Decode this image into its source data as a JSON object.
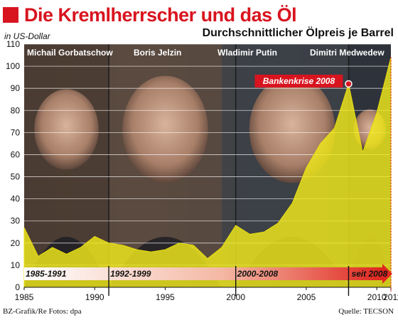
{
  "header": {
    "title": "Die Kremlherrscher und das Öl",
    "unit": "in US-Dollar",
    "subtitle": "Durchschnittlicher Ölpreis je Barrel"
  },
  "footer": {
    "left": "BZ-Grafik/Re Fotos: dpa",
    "right": "Quelle: TECSON"
  },
  "colors": {
    "accent_red": "#d8141f",
    "fill_yellow": "#f2ea1c",
    "era_bar_start": "#ffffff",
    "era_bar_end": "#e0271f"
  },
  "chart_data": {
    "type": "area",
    "title": "Die Kremlherrscher und das Öl",
    "subtitle": "Durchschnittlicher Ölpreis je Barrel",
    "ylabel": "in US-Dollar",
    "xlim": [
      1985,
      2011
    ],
    "ylim": [
      0,
      110
    ],
    "yticks": [
      0,
      10,
      20,
      30,
      40,
      50,
      60,
      70,
      80,
      90,
      100,
      110
    ],
    "xticks": [
      1985,
      1990,
      1995,
      2000,
      2005,
      2010,
      2011
    ],
    "grid": true,
    "x": [
      1985,
      1986,
      1987,
      1988,
      1989,
      1990,
      1991,
      1992,
      1993,
      1994,
      1995,
      1996,
      1997,
      1998,
      1999,
      2000,
      2001,
      2002,
      2003,
      2004,
      2005,
      2006,
      2007,
      2008,
      2009,
      2010,
      2011
    ],
    "series": [
      {
        "values": [
          27,
          14,
          18,
          15,
          18,
          23,
          20,
          19,
          17,
          16,
          17,
          20,
          19,
          13,
          18,
          28,
          24,
          25,
          29,
          38,
          54,
          65,
          72,
          92,
          61,
          79,
          104
        ]
      }
    ],
    "leaders": [
      {
        "name": "Michail Gorbatschow",
        "from": 1985,
        "to": 1991
      },
      {
        "name": "Boris Jelzin",
        "from": 1991,
        "to": 1999
      },
      {
        "name": "Wladimir Putin",
        "from": 2000,
        "to": 2008
      },
      {
        "name": "Dimitri Medwedew",
        "from": 2008,
        "to": 2011
      }
    ],
    "eras": [
      {
        "label": "1985-1991",
        "from": 1985
      },
      {
        "label": "1992-1999",
        "from": 1991
      },
      {
        "label": "2000-2008",
        "from": 2000
      },
      {
        "label": "seit 2008",
        "from": 2008
      }
    ],
    "annotations": [
      {
        "text": "Bankenkrise 2008",
        "x": 2008,
        "y": 92
      }
    ]
  }
}
